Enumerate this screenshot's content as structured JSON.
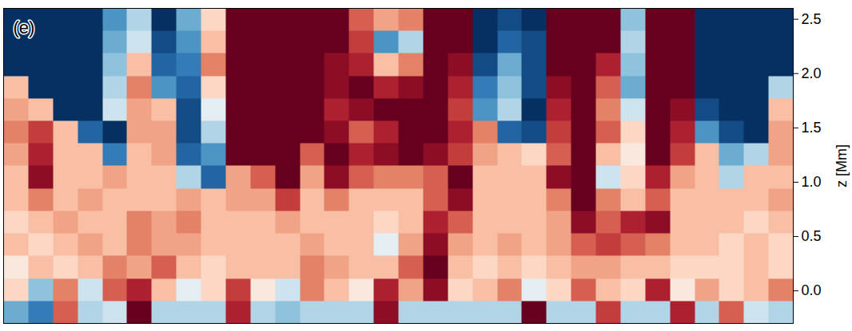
{
  "chart_data": {
    "type": "heatmap",
    "panel_label": "(e)",
    "ylabel": "z [Mm]",
    "xlim": [
      0,
      32
    ],
    "ylim": [
      -0.3,
      2.6
    ],
    "yticks": [
      {
        "value": 0,
        "label": "0.0"
      },
      0.5,
      {
        "value": 1,
        "label": "1.0"
      },
      1.5,
      {
        "value": 2,
        "label": "2.0"
      },
      2.5
    ],
    "tick_labels": "y",
    "color": "RdBu_r",
    "color_range": [
      -1,
      1
    ],
    "cells": [
      [
        -1,
        -1,
        -1,
        -1,
        -0.6,
        -0.3,
        -1,
        -0.5,
        0.2,
        1,
        1,
        1,
        1,
        1,
        0.6,
        0.4,
        0.5,
        1,
        1,
        -1,
        -0.9,
        -1,
        1,
        1,
        1,
        -0.4,
        1,
        1,
        -1,
        -1,
        -1,
        -1
      ],
      [
        -1,
        -1,
        -1,
        -1,
        -0.5,
        -0.2,
        -0.9,
        -0.6,
        0.3,
        1,
        1,
        1,
        1,
        1,
        0.7,
        -0.6,
        -0.3,
        1,
        1,
        -1,
        -0.8,
        -0.9,
        1,
        1,
        1,
        -0.3,
        1,
        1,
        -1,
        -1,
        -1,
        -1
      ],
      [
        -1,
        -1,
        -1,
        -1,
        -0.4,
        0.3,
        -0.8,
        -0.7,
        0.5,
        1,
        1,
        1,
        1,
        0.9,
        0.8,
        0.3,
        0.5,
        1,
        0.9,
        -0.9,
        -0.5,
        -0.9,
        1,
        1,
        0.8,
        -0.4,
        1,
        1,
        -1,
        -1,
        -1,
        -1
      ],
      [
        0.3,
        -1,
        -1,
        -1,
        -0.3,
        0.5,
        -0.6,
        -0.8,
        0.2,
        1,
        1,
        1,
        1,
        0.9,
        1,
        0.8,
        0.9,
        1,
        0.8,
        -0.7,
        -0.4,
        -0.9,
        0.9,
        1,
        0.6,
        -0.5,
        1,
        1,
        -1,
        -1,
        -1,
        -0.3
      ],
      [
        0.4,
        0.3,
        -1,
        -1,
        -0.2,
        0.4,
        0.3,
        -0.9,
        -0.1,
        1,
        1,
        1,
        1,
        0.8,
        0.9,
        1,
        1,
        1,
        0.7,
        -0.6,
        -0.3,
        -1,
        0.8,
        1,
        0.5,
        -0.2,
        1,
        0.9,
        -0.9,
        -1,
        -1,
        0.3
      ],
      [
        0.5,
        0.7,
        0.3,
        -0.8,
        -1,
        0.4,
        0.4,
        -0.9,
        -0.3,
        1,
        1,
        1,
        1,
        0.9,
        0.6,
        0.8,
        1,
        1,
        0.8,
        0.5,
        -0.8,
        -0.9,
        0.7,
        1,
        0.6,
        0.2,
        1,
        0.8,
        -0.6,
        -0.9,
        -1,
        0.4
      ],
      [
        0.4,
        0.8,
        0.3,
        0.3,
        -0.7,
        0.3,
        0.4,
        -0.8,
        -0.6,
        1,
        1,
        1,
        0.6,
        1,
        0.8,
        0.9,
        1,
        0.9,
        0.7,
        0.4,
        0.3,
        0.2,
        0.6,
        1,
        0.3,
        0.1,
        1,
        0.7,
        0.3,
        -0.5,
        -0.3,
        0.4
      ],
      [
        0.3,
        0.9,
        0.3,
        0.3,
        0.4,
        0.3,
        0.3,
        -0.3,
        -0.8,
        0.4,
        0.6,
        1,
        0.4,
        0.9,
        0.6,
        0.5,
        0.5,
        0.6,
        1,
        0.3,
        0.3,
        0.3,
        0.9,
        1,
        -0.2,
        0.2,
        0.8,
        0.4,
        0.3,
        -0.3,
        0.3,
        0.3
      ],
      [
        0.3,
        0.5,
        0.3,
        0.4,
        0.3,
        0.3,
        0.3,
        0.4,
        0.3,
        0.4,
        0.4,
        0.7,
        0.3,
        0.5,
        0.3,
        0.3,
        0.3,
        0.6,
        0.9,
        0.3,
        0.3,
        0.3,
        0.5,
        1,
        0.5,
        0.3,
        0.6,
        0.3,
        0.3,
        0.3,
        0.3,
        0.4
      ],
      [
        0.2,
        0.3,
        0.4,
        0.3,
        0.3,
        0.5,
        0.4,
        0.5,
        0.3,
        0.3,
        0.3,
        0.4,
        0.3,
        0.3,
        0.3,
        0.2,
        0.3,
        0.8,
        0.6,
        0.3,
        0.3,
        0.3,
        0.4,
        0.9,
        0.6,
        0.8,
        0.9,
        0.3,
        0.3,
        0.3,
        0.2,
        0.3
      ],
      [
        0.3,
        0.2,
        0.3,
        0.4,
        0.3,
        0.5,
        0.4,
        0.4,
        0.3,
        0.3,
        0.3,
        0.3,
        0.4,
        0.3,
        0.3,
        -0.1,
        0.4,
        0.9,
        0.4,
        0.3,
        0.4,
        0.3,
        0.4,
        0.6,
        0.7,
        0.6,
        0.5,
        0.3,
        0.3,
        0.2,
        0.3,
        0.2
      ],
      [
        0.1,
        0.3,
        0.2,
        0.3,
        0.5,
        0.4,
        0.6,
        0.3,
        0.2,
        0.3,
        0.3,
        0.3,
        0.5,
        0.4,
        0.3,
        0.3,
        0.6,
        1,
        0.3,
        0.2,
        0.3,
        0.2,
        0.3,
        0.4,
        0.4,
        0.3,
        0.3,
        0.2,
        0.2,
        0.2,
        0.3,
        0.2
      ],
      [
        0.2,
        -0.4,
        0.5,
        -0.2,
        0.6,
        0.8,
        0.3,
        -0.1,
        0.2,
        0.7,
        0.1,
        -0.2,
        0.5,
        0.3,
        0.1,
        0.8,
        0.4,
        0.9,
        0.2,
        0.3,
        0.5,
        -0.1,
        0.2,
        0.6,
        0.3,
        0.2,
        0.8,
        0.1,
        0.4,
        0.2,
        0.3,
        0.5
      ],
      [
        -0.5,
        -0.7,
        0.6,
        -0.3,
        -0.2,
        1,
        -0.3,
        -0.3,
        -0.3,
        0.8,
        -0.3,
        -0.4,
        -0.3,
        -0.3,
        -0.3,
        0.9,
        -0.3,
        -0.3,
        -0.3,
        -0.3,
        -0.3,
        1,
        -0.3,
        -0.3,
        0.7,
        -0.3,
        -0.3,
        0.8,
        -0.3,
        0.6,
        -0.2,
        -0.3
      ]
    ]
  }
}
